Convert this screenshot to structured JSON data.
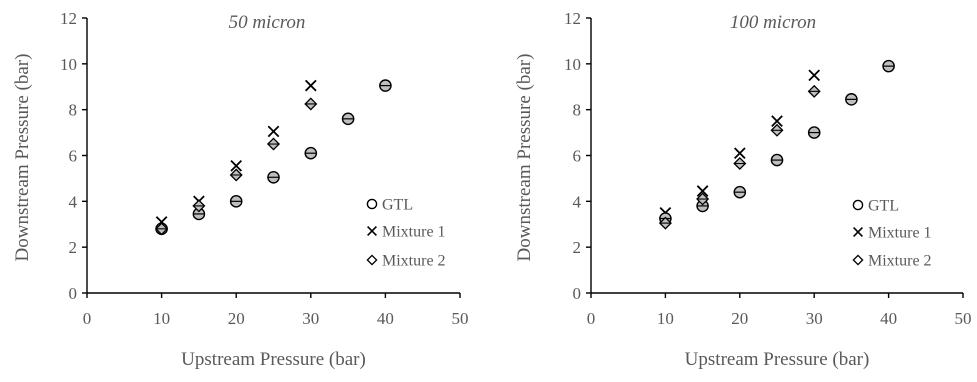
{
  "chart_data": [
    {
      "type": "scatter",
      "title": "50 micron",
      "xlabel": "Upstream Pressure (bar)",
      "ylabel": "Downstream Pressure (bar)",
      "xlim": [
        0,
        50
      ],
      "ylim": [
        0,
        12
      ],
      "xticks": [
        0,
        10,
        20,
        30,
        40,
        50
      ],
      "yticks": [
        0,
        2,
        4,
        6,
        8,
        10,
        12
      ],
      "grid": false,
      "legend": "bottom-right",
      "series": [
        {
          "name": "GTL",
          "marker": "circle-bar",
          "x": [
            10,
            15,
            20,
            25,
            30,
            35,
            40
          ],
          "y": [
            2.8,
            3.45,
            4.0,
            5.05,
            6.1,
            7.6,
            9.05
          ]
        },
        {
          "name": "Mixture 1",
          "marker": "x",
          "x": [
            10,
            15,
            20,
            25,
            30
          ],
          "y": [
            3.1,
            4.0,
            5.55,
            7.05,
            9.05
          ]
        },
        {
          "name": "Mixture 2",
          "marker": "diamond-bar",
          "x": [
            10,
            15,
            20,
            25,
            30
          ],
          "y": [
            2.8,
            3.8,
            5.15,
            6.5,
            8.25
          ]
        }
      ]
    },
    {
      "type": "scatter",
      "title": "100 micron",
      "xlabel": "Upstream Pressure (bar)",
      "ylabel": "Downstream Pressure (bar)",
      "xlim": [
        0,
        50
      ],
      "ylim": [
        0,
        12
      ],
      "xticks": [
        0,
        10,
        20,
        30,
        40,
        50
      ],
      "yticks": [
        0,
        2,
        4,
        6,
        8,
        10,
        12
      ],
      "grid": false,
      "legend": "bottom-right",
      "series": [
        {
          "name": "GTL",
          "marker": "circle-bar",
          "x": [
            10,
            15,
            20,
            25,
            30,
            35,
            40
          ],
          "y": [
            3.25,
            3.8,
            4.4,
            5.8,
            7.0,
            8.45,
            9.9
          ]
        },
        {
          "name": "Mixture 1",
          "marker": "x",
          "x": [
            10,
            15,
            20,
            25,
            30
          ],
          "y": [
            3.5,
            4.45,
            6.1,
            7.5,
            9.5
          ]
        },
        {
          "name": "Mixture 2",
          "marker": "diamond-bar",
          "x": [
            10,
            15,
            20,
            25,
            30
          ],
          "y": [
            3.05,
            4.1,
            5.65,
            7.1,
            8.8
          ]
        }
      ]
    }
  ]
}
